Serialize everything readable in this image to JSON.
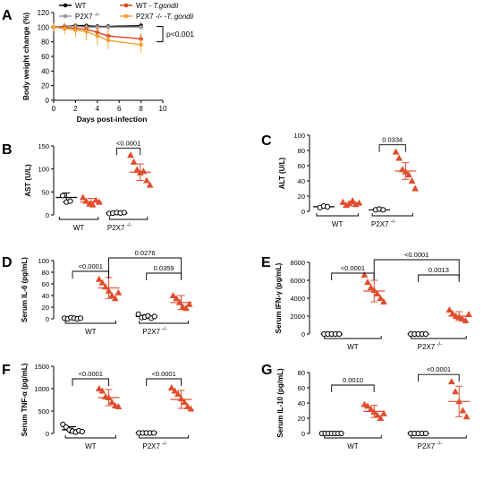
{
  "colors": {
    "wt": "#000000",
    "ko": "#9a9a9a",
    "wt_tg": "#e0421b",
    "ko_tg": "#f0a232",
    "infected": "#e04d2c"
  },
  "panels": {
    "A": {
      "letter": "A"
    },
    "B": {
      "letter": "B"
    },
    "C": {
      "letter": "C"
    },
    "D": {
      "letter": "D"
    },
    "E": {
      "letter": "E"
    },
    "F": {
      "letter": "F"
    },
    "G": {
      "letter": "G"
    }
  },
  "chart_data": [
    {
      "id": "A",
      "type": "line",
      "xlabel": "Days post-infection",
      "ylabel": "Body weight change (%)",
      "xlim": [
        0,
        10
      ],
      "ylim": [
        0,
        120
      ],
      "xticks": [
        "0",
        "2",
        "4",
        "6",
        "8",
        "10"
      ],
      "yticks": [
        "0",
        "20",
        "40",
        "60",
        "80",
        "100",
        "120"
      ],
      "legend": [
        "WT",
        "WT - T.gondii",
        "P2X7 -/-",
        "P2X7 -/- - T.gondii"
      ],
      "pvalue": "p<0.001",
      "series": [
        {
          "name": "WT",
          "color": "wt",
          "x": [
            0,
            1,
            2,
            3,
            4,
            5,
            8
          ],
          "y": [
            100,
            101,
            102,
            102,
            101,
            101,
            102
          ],
          "err": [
            3,
            3,
            3,
            3,
            3,
            3,
            4
          ]
        },
        {
          "name": "P2X7 -/-",
          "color": "ko",
          "x": [
            0,
            1,
            2,
            3,
            4,
            5,
            8
          ],
          "y": [
            100,
            101,
            101,
            100,
            100,
            100,
            100
          ],
          "err": [
            3,
            3,
            3,
            3,
            3,
            3,
            3
          ]
        },
        {
          "name": "WT - T.gondii",
          "color": "wt_tg",
          "x": [
            0,
            1,
            2,
            3,
            4,
            5,
            8
          ],
          "y": [
            100,
            100,
            98,
            97,
            93,
            88,
            84
          ],
          "err": [
            4,
            6,
            7,
            8,
            9,
            8,
            7
          ]
        },
        {
          "name": "P2X7 -/- - T.gondii",
          "color": "ko_tg",
          "x": [
            0,
            1,
            2,
            3,
            4,
            5,
            8
          ],
          "y": [
            100,
            98,
            96,
            94,
            88,
            82,
            76
          ],
          "err": [
            5,
            8,
            10,
            12,
            13,
            12,
            11
          ]
        }
      ]
    },
    {
      "id": "B",
      "type": "scatter",
      "ylabel": "AST (U/L)",
      "ylim": [
        0,
        150
      ],
      "yticks": [
        "0",
        "50",
        "100",
        "150"
      ],
      "groups": [
        "WT",
        "P2X7 -/-"
      ],
      "columns": [
        {
          "infected": false,
          "mean": 38,
          "sd": 10,
          "points": [
            42,
            28,
            30
          ]
        },
        {
          "infected": true,
          "mean": 28,
          "sd": 8,
          "points": [
            38,
            30,
            24,
            22,
            32,
            28
          ]
        },
        {
          "infected": false,
          "mean": 4,
          "sd": 1,
          "points": [
            3,
            4,
            5,
            4,
            5
          ]
        },
        {
          "infected": true,
          "mean": 93,
          "sd": 18,
          "points": [
            130,
            115,
            98,
            92,
            95,
            75,
            65
          ]
        }
      ],
      "brackets": [
        {
          "from": 2,
          "to": 3,
          "label": "<0.0001"
        }
      ]
    },
    {
      "id": "C",
      "type": "scatter",
      "ylabel": "ALT (U/L)",
      "ylim": [
        0,
        100
      ],
      "yticks": [
        "0",
        "20",
        "40",
        "60",
        "80",
        "100"
      ],
      "groups": [
        "WT",
        "P2X7 -/-"
      ],
      "columns": [
        {
          "infected": false,
          "mean": 6,
          "sd": 1,
          "points": [
            5,
            7,
            6
          ]
        },
        {
          "infected": true,
          "mean": 10,
          "sd": 3,
          "points": [
            12,
            8,
            10,
            14,
            9,
            11
          ]
        },
        {
          "infected": false,
          "mean": 2,
          "sd": 1,
          "points": [
            2,
            3,
            2
          ]
        },
        {
          "infected": true,
          "mean": 53,
          "sd": 11,
          "points": [
            78,
            70,
            55,
            52,
            48,
            40,
            30
          ]
        }
      ],
      "brackets": [
        {
          "from": 2,
          "to": 3,
          "label": "0.0334"
        }
      ]
    },
    {
      "id": "D",
      "type": "scatter",
      "ylabel": "Serum IL-6 (pg/mL)",
      "ylim": [
        0,
        100
      ],
      "yticks": [
        "0",
        "20",
        "40",
        "60",
        "80",
        "100"
      ],
      "groups": [
        "WT",
        "P2X7 -/-"
      ],
      "columns": [
        {
          "infected": false,
          "mean": 1,
          "sd": 1,
          "points": [
            1,
            0,
            2,
            1,
            0,
            1
          ]
        },
        {
          "infected": true,
          "mean": 53,
          "sd": 18,
          "points": [
            68,
            62,
            55,
            48,
            40,
            35,
            45
          ]
        },
        {
          "infected": false,
          "mean": 4,
          "sd": 3,
          "points": [
            8,
            2,
            3,
            5,
            1,
            4
          ]
        },
        {
          "infected": true,
          "mean": 28,
          "sd": 12,
          "points": [
            40,
            35,
            28,
            20,
            18,
            25
          ]
        }
      ],
      "brackets": [
        {
          "from": 0,
          "to": 1,
          "label": "<0.0001",
          "level": 0
        },
        {
          "from": 2,
          "to": 3,
          "label": "0.0359",
          "level": 0
        },
        {
          "from": 1,
          "to": 3,
          "label": "0.0276",
          "level": 1
        }
      ]
    },
    {
      "id": "E",
      "type": "scatter",
      "ylabel": "Serum IFN-γ (pg/mL)",
      "ylim": [
        0,
        8000
      ],
      "yticks": [
        "0",
        "2000",
        "4000",
        "6000",
        "8000"
      ],
      "groups": [
        "WT",
        "P2X7 -/-"
      ],
      "columns": [
        {
          "infected": false,
          "mean": 0,
          "sd": 0,
          "points": [
            0,
            0,
            0,
            0,
            0
          ]
        },
        {
          "infected": true,
          "mean": 4800,
          "sd": 1200,
          "points": [
            6600,
            5800,
            5200,
            4900,
            4500,
            4000,
            3600
          ]
        },
        {
          "infected": false,
          "mean": 0,
          "sd": 0,
          "points": [
            0,
            0,
            0,
            0,
            0
          ]
        },
        {
          "infected": true,
          "mean": 2000,
          "sd": 500,
          "points": [
            2700,
            2300,
            2000,
            1900,
            1700,
            1500,
            2200
          ]
        }
      ],
      "brackets": [
        {
          "from": 0,
          "to": 1,
          "label": "<0.0001",
          "level": 0
        },
        {
          "from": 2,
          "to": 3,
          "label": "0.0013",
          "level": 0
        },
        {
          "from": 1,
          "to": 3,
          "label": "<0.0001",
          "level": 1
        }
      ]
    },
    {
      "id": "F",
      "type": "scatter",
      "ylabel": "Serum TNF-α (pg/mL)",
      "ylim": [
        0,
        1500
      ],
      "yticks": [
        "0",
        "500",
        "1000",
        "1500"
      ],
      "groups": [
        "WT",
        "P2X7 -/-"
      ],
      "columns": [
        {
          "infected": false,
          "mean": 80,
          "sd": 70,
          "points": [
            200,
            140,
            80,
            50,
            30,
            60,
            40
          ]
        },
        {
          "infected": true,
          "mean": 800,
          "sd": 180,
          "points": [
            1000,
            950,
            820,
            800,
            700,
            620,
            600
          ]
        },
        {
          "infected": false,
          "mean": 10,
          "sd": 5,
          "points": [
            10,
            10,
            10,
            10,
            10
          ]
        },
        {
          "infected": true,
          "mean": 760,
          "sd": 200,
          "points": [
            1020,
            950,
            880,
            780,
            700,
            600,
            550
          ]
        }
      ],
      "brackets": [
        {
          "from": 0,
          "to": 1,
          "label": "<0.0001",
          "level": 0
        },
        {
          "from": 2,
          "to": 3,
          "label": "<0.0001",
          "level": 0
        }
      ]
    },
    {
      "id": "G",
      "type": "scatter",
      "ylabel": "Serum IL-10 (pg/mL)",
      "ylim": [
        0,
        80
      ],
      "yticks": [
        "0",
        "20",
        "40",
        "60",
        "80"
      ],
      "groups": [
        "WT",
        "P2X7 -/-"
      ],
      "columns": [
        {
          "infected": false,
          "mean": 0,
          "sd": 0,
          "points": [
            0,
            0,
            0,
            0,
            0,
            0,
            0
          ]
        },
        {
          "infected": true,
          "mean": 29,
          "sd": 8,
          "points": [
            38,
            36,
            32,
            28,
            24,
            20,
            26
          ]
        },
        {
          "infected": false,
          "mean": 0,
          "sd": 0,
          "points": [
            0,
            0,
            0,
            0,
            0
          ]
        },
        {
          "infected": true,
          "mean": 42,
          "sd": 20,
          "points": [
            68,
            55,
            42,
            30,
            22
          ]
        }
      ],
      "brackets": [
        {
          "from": 0,
          "to": 1,
          "label": "0.0010",
          "level": 0
        },
        {
          "from": 2,
          "to": 3,
          "label": "<0.0001",
          "level": 0
        }
      ]
    }
  ]
}
